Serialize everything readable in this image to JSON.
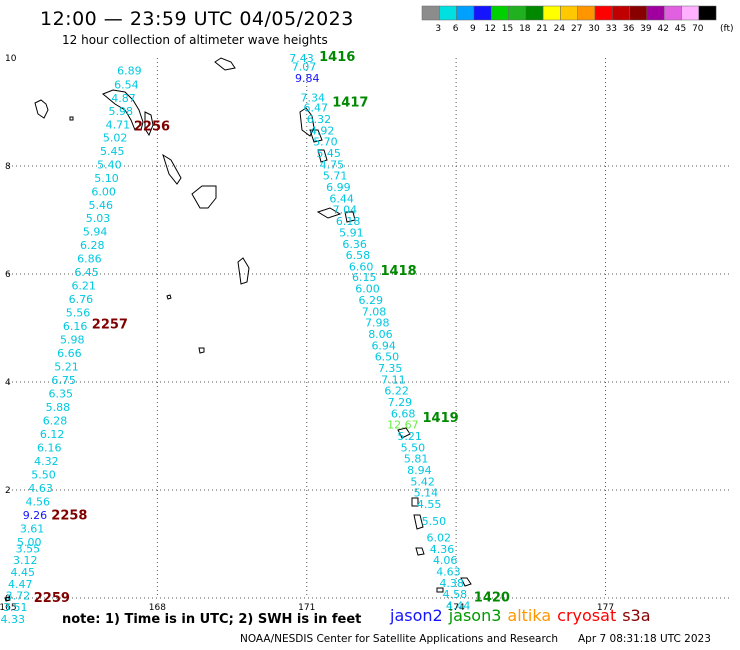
{
  "header": {
    "title": "12:00 — 23:59 UTC 04/05/2023",
    "subtitle": "12 hour collection of altimeter wave heights"
  },
  "color_scale": {
    "unit": "(ft)",
    "items": [
      {
        "label": "3",
        "color": "#8c8c8c"
      },
      {
        "label": "6",
        "color": "#00e0e0"
      },
      {
        "label": "9",
        "color": "#00a0ff"
      },
      {
        "label": "12",
        "color": "#1414ff"
      },
      {
        "label": "15",
        "color": "#00d000"
      },
      {
        "label": "18",
        "color": "#20b020"
      },
      {
        "label": "21",
        "color": "#008800"
      },
      {
        "label": "24",
        "color": "#ffff00"
      },
      {
        "label": "27",
        "color": "#ffc800"
      },
      {
        "label": "30",
        "color": "#ff9600"
      },
      {
        "label": "33",
        "color": "#ff0000"
      },
      {
        "label": "36",
        "color": "#c00000"
      },
      {
        "label": "39",
        "color": "#880000"
      },
      {
        "label": "42",
        "color": "#a000a0"
      },
      {
        "label": "45",
        "color": "#e060e0"
      },
      {
        "label": "70",
        "color": "#ffb0ff"
      },
      {
        "label": "",
        "color": "#000000"
      }
    ]
  },
  "axes": {
    "x_ticks": [
      {
        "value": 165,
        "label": "165"
      },
      {
        "value": 168,
        "label": "168"
      },
      {
        "value": 171,
        "label": "171"
      },
      {
        "value": 174,
        "label": "174"
      },
      {
        "value": 177,
        "label": "177"
      }
    ],
    "y_ticks": [
      {
        "value": 0,
        "label": "0"
      },
      {
        "value": 2,
        "label": "2"
      },
      {
        "value": 4,
        "label": "4"
      },
      {
        "value": 6,
        "label": "6"
      },
      {
        "value": 8,
        "label": "8"
      },
      {
        "value": 10,
        "label": "10"
      }
    ]
  },
  "track_colors": {
    "cyan": "#00c8e0",
    "blue": "#1414ff",
    "green": "#66ee44",
    "time_green": "#008800",
    "time_dark": "#800000"
  },
  "west_track": {
    "times": [
      {
        "label": "2256",
        "y": 8.75
      },
      {
        "label": "2257",
        "y": 5.08
      },
      {
        "label": "2258",
        "y": 1.55
      },
      {
        "label": "2259",
        "y": 0.02
      }
    ],
    "values": [
      {
        "v": "6.89",
        "y": 9.77,
        "c": "cyan"
      },
      {
        "v": "6.54",
        "y": 9.51,
        "c": "cyan"
      },
      {
        "v": "4.87",
        "y": 9.26,
        "c": "cyan"
      },
      {
        "v": "5.98",
        "y": 9.02,
        "c": "cyan"
      },
      {
        "v": "4.71",
        "y": 8.77,
        "c": "cyan"
      },
      {
        "v": "5.02",
        "y": 8.53,
        "c": "cyan"
      },
      {
        "v": "5.45",
        "y": 8.28,
        "c": "cyan"
      },
      {
        "v": "5.40",
        "y": 8.03,
        "c": "cyan"
      },
      {
        "v": "5.10",
        "y": 7.78,
        "c": "cyan"
      },
      {
        "v": "6.00",
        "y": 7.53,
        "c": "cyan"
      },
      {
        "v": "5.46",
        "y": 7.28,
        "c": "cyan"
      },
      {
        "v": "5.03",
        "y": 7.04,
        "c": "cyan"
      },
      {
        "v": "5.94",
        "y": 6.79,
        "c": "cyan"
      },
      {
        "v": "6.28",
        "y": 6.54,
        "c": "cyan"
      },
      {
        "v": "6.86",
        "y": 6.29,
        "c": "cyan"
      },
      {
        "v": "6.45",
        "y": 6.04,
        "c": "cyan"
      },
      {
        "v": "6.21",
        "y": 5.79,
        "c": "cyan"
      },
      {
        "v": "6.76",
        "y": 5.54,
        "c": "cyan"
      },
      {
        "v": "5.56",
        "y": 5.29,
        "c": "cyan"
      },
      {
        "v": "6.16",
        "y": 5.04,
        "c": "cyan"
      },
      {
        "v": "5.98",
        "y": 4.79,
        "c": "cyan"
      },
      {
        "v": "6.66",
        "y": 4.54,
        "c": "cyan"
      },
      {
        "v": "5.21",
        "y": 4.29,
        "c": "cyan"
      },
      {
        "v": "6.75",
        "y": 4.04,
        "c": "cyan"
      },
      {
        "v": "6.35",
        "y": 3.79,
        "c": "cyan"
      },
      {
        "v": "5.88",
        "y": 3.54,
        "c": "cyan"
      },
      {
        "v": "6.28",
        "y": 3.29,
        "c": "cyan"
      },
      {
        "v": "6.12",
        "y": 3.04,
        "c": "cyan"
      },
      {
        "v": "6.16",
        "y": 2.79,
        "c": "cyan"
      },
      {
        "v": "4.32",
        "y": 2.54,
        "c": "cyan"
      },
      {
        "v": "5.50",
        "y": 2.29,
        "c": "cyan"
      },
      {
        "v": "4.63",
        "y": 2.04,
        "c": "cyan"
      },
      {
        "v": "4.56",
        "y": 1.79,
        "c": "cyan"
      },
      {
        "v": "9.26",
        "y": 1.54,
        "c": "blue"
      },
      {
        "v": "3.61",
        "y": 1.29,
        "c": "cyan"
      },
      {
        "v": "5.00",
        "y": 1.04,
        "c": "cyan"
      },
      {
        "v": "3.55",
        "y": 0.92,
        "c": "cyan"
      },
      {
        "v": "3.12",
        "y": 0.7,
        "c": "cyan"
      },
      {
        "v": "4.45",
        "y": 0.48,
        "c": "cyan"
      },
      {
        "v": "4.47",
        "y": 0.26,
        "c": "cyan"
      },
      {
        "v": "3.72",
        "y": 0.05,
        "c": "cyan"
      },
      {
        "v": "3.51",
        "y": -0.17,
        "c": "cyan"
      },
      {
        "v": "4.33",
        "y": -0.39,
        "c": "cyan"
      }
    ]
  },
  "east_track": {
    "times": [
      {
        "label": "1416",
        "y": 10.04
      },
      {
        "label": "1417",
        "y": 9.19
      },
      {
        "label": "1418",
        "y": 6.07
      },
      {
        "label": "1419",
        "y": 3.35
      },
      {
        "label": "1420",
        "y": 0.03
      }
    ],
    "values": [
      {
        "v": "7.43",
        "y": 10.0,
        "c": "cyan"
      },
      {
        "v": "7.07",
        "y": 9.84,
        "c": "cyan"
      },
      {
        "v": "9.84",
        "y": 9.63,
        "c": "blue"
      },
      {
        "v": "7.34",
        "y": 9.27,
        "c": "cyan"
      },
      {
        "v": "6.47",
        "y": 9.08,
        "c": "cyan"
      },
      {
        "v": "6.32",
        "y": 8.87,
        "c": "cyan"
      },
      {
        "v": "4.92",
        "y": 8.66,
        "c": "cyan"
      },
      {
        "v": "5.70",
        "y": 8.45,
        "c": "cyan"
      },
      {
        "v": "5.45",
        "y": 8.24,
        "c": "cyan"
      },
      {
        "v": "4.75",
        "y": 8.03,
        "c": "cyan"
      },
      {
        "v": "5.71",
        "y": 7.82,
        "c": "cyan"
      },
      {
        "v": "6.99",
        "y": 7.61,
        "c": "cyan"
      },
      {
        "v": "6.44",
        "y": 7.4,
        "c": "cyan"
      },
      {
        "v": "7.04",
        "y": 7.19,
        "c": "cyan"
      },
      {
        "v": "6.18",
        "y": 6.98,
        "c": "cyan"
      },
      {
        "v": "5.91",
        "y": 6.77,
        "c": "cyan"
      },
      {
        "v": "6.36",
        "y": 6.56,
        "c": "cyan"
      },
      {
        "v": "6.58",
        "y": 6.35,
        "c": "cyan"
      },
      {
        "v": "6.60",
        "y": 6.14,
        "c": "cyan"
      },
      {
        "v": "6.15",
        "y": 5.94,
        "c": "cyan"
      },
      {
        "v": "6.00",
        "y": 5.73,
        "c": "cyan"
      },
      {
        "v": "6.29",
        "y": 5.52,
        "c": "cyan"
      },
      {
        "v": "7.08",
        "y": 5.31,
        "c": "cyan"
      },
      {
        "v": "7.98",
        "y": 5.1,
        "c": "cyan"
      },
      {
        "v": "8.06",
        "y": 4.89,
        "c": "cyan"
      },
      {
        "v": "6.94",
        "y": 4.68,
        "c": "cyan"
      },
      {
        "v": "6.50",
        "y": 4.47,
        "c": "cyan"
      },
      {
        "v": "7.35",
        "y": 4.26,
        "c": "cyan"
      },
      {
        "v": "7.11",
        "y": 4.05,
        "c": "cyan"
      },
      {
        "v": "6.22",
        "y": 3.84,
        "c": "cyan"
      },
      {
        "v": "7.29",
        "y": 3.63,
        "c": "cyan"
      },
      {
        "v": "6.68",
        "y": 3.42,
        "c": "cyan"
      },
      {
        "v": "12.67",
        "y": 3.21,
        "c": "green"
      },
      {
        "v": "5.21",
        "y": 3.0,
        "c": "cyan"
      },
      {
        "v": "5.50",
        "y": 2.79,
        "c": "cyan"
      },
      {
        "v": "5.81",
        "y": 2.58,
        "c": "cyan"
      },
      {
        "v": "8.94",
        "y": 2.37,
        "c": "cyan"
      },
      {
        "v": "5.42",
        "y": 2.16,
        "c": "cyan"
      },
      {
        "v": "5.14",
        "y": 1.95,
        "c": "cyan"
      },
      {
        "v": "4.55",
        "y": 1.74,
        "c": "cyan"
      },
      {
        "v": "5.50",
        "y": 1.43,
        "c": "cyan"
      },
      {
        "v": "6.02",
        "y": 1.12,
        "c": "cyan"
      },
      {
        "v": "4.36",
        "y": 0.91,
        "c": "cyan"
      },
      {
        "v": "4.06",
        "y": 0.7,
        "c": "cyan"
      },
      {
        "v": "4.63",
        "y": 0.49,
        "c": "cyan"
      },
      {
        "v": "4.38",
        "y": 0.28,
        "c": "cyan"
      },
      {
        "v": "4.58",
        "y": 0.07,
        "c": "cyan"
      },
      {
        "v": "4.44",
        "y": -0.14,
        "c": "cyan"
      }
    ]
  },
  "footer": {
    "note": "note: 1) Time is in UTC; 2) SWH is in feet",
    "satellites": [
      {
        "label": "jason2",
        "color": "#1414ff"
      },
      {
        "label": "jason3",
        "color": "#009900"
      },
      {
        "label": "altika",
        "color": "#ff9600"
      },
      {
        "label": "cryosat",
        "color": "#ff0000"
      },
      {
        "label": "s3a",
        "color": "#880000"
      }
    ],
    "credit": "NOAA/NESDIS Center for Satellite Applications and Research",
    "date": "Apr  7 08:31:18 UTC 2023"
  }
}
